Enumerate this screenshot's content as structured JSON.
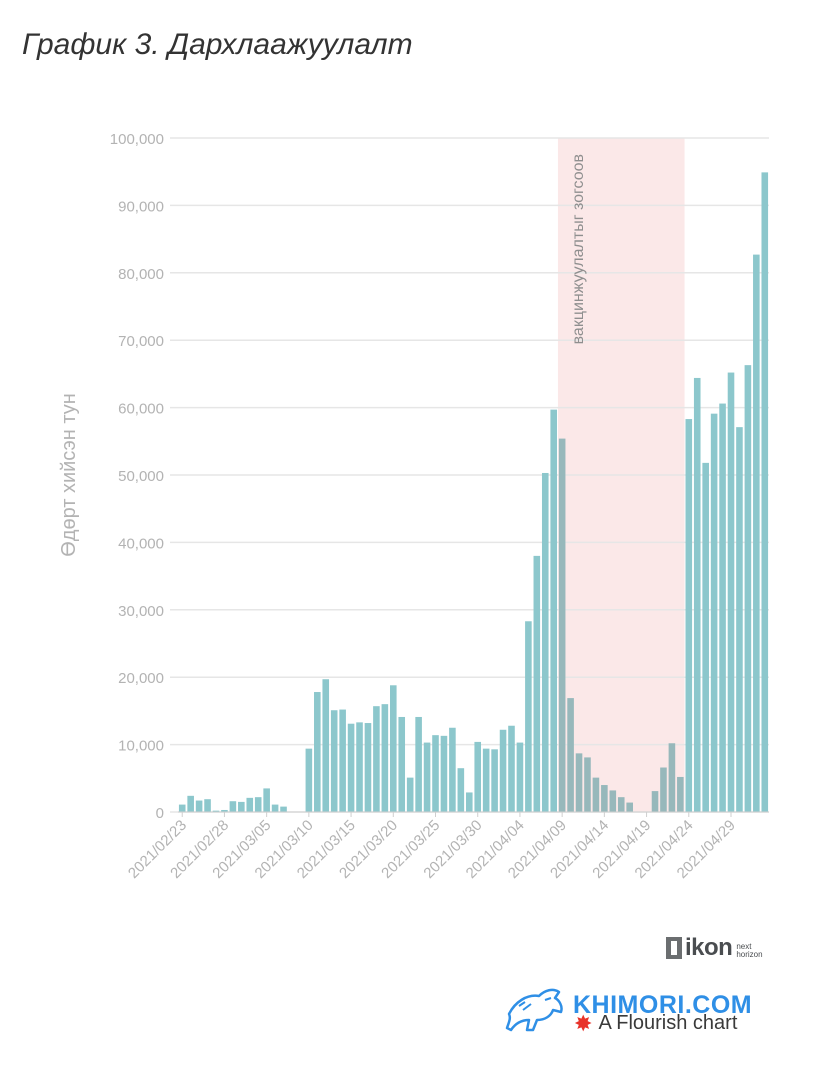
{
  "title": "График 3. Дархлаажуулалт",
  "chart_data": {
    "type": "bar",
    "ylabel": "Өдөрт хийсэн тун",
    "ylim": [
      0,
      100000
    ],
    "yticks": [
      0,
      10000,
      20000,
      30000,
      40000,
      50000,
      60000,
      70000,
      80000,
      90000,
      100000
    ],
    "ytick_labels": [
      "0",
      "10,000",
      "20,000",
      "30,000",
      "40,000",
      "50,000",
      "60,000",
      "70,000",
      "80,000",
      "90,000",
      "100,000"
    ],
    "x_tick_labels": [
      "2021/02/23",
      "2021/02/28",
      "2021/03/05",
      "2021/03/10",
      "2021/03/15",
      "2021/03/20",
      "2021/03/25",
      "2021/03/30",
      "2021/04/04",
      "2021/04/09",
      "2021/04/14",
      "2021/04/19",
      "2021/04/24",
      "2021/04/29"
    ],
    "categories": [
      "2021/02/23",
      "2021/02/24",
      "2021/02/25",
      "2021/02/26",
      "2021/02/27",
      "2021/02/28",
      "2021/03/01",
      "2021/03/02",
      "2021/03/03",
      "2021/03/04",
      "2021/03/05",
      "2021/03/06",
      "2021/03/07",
      "2021/03/08",
      "2021/03/09",
      "2021/03/10",
      "2021/03/11",
      "2021/03/12",
      "2021/03/13",
      "2021/03/14",
      "2021/03/15",
      "2021/03/16",
      "2021/03/17",
      "2021/03/18",
      "2021/03/19",
      "2021/03/20",
      "2021/03/21",
      "2021/03/22",
      "2021/03/23",
      "2021/03/24",
      "2021/03/25",
      "2021/03/26",
      "2021/03/27",
      "2021/03/28",
      "2021/03/29",
      "2021/03/30",
      "2021/03/31",
      "2021/04/01",
      "2021/04/02",
      "2021/04/03",
      "2021/04/04",
      "2021/04/05",
      "2021/04/06",
      "2021/04/07",
      "2021/04/08",
      "2021/04/09",
      "2021/04/10",
      "2021/04/11",
      "2021/04/12",
      "2021/04/13",
      "2021/04/14",
      "2021/04/15",
      "2021/04/16",
      "2021/04/17",
      "2021/04/18",
      "2021/04/19",
      "2021/04/20",
      "2021/04/21",
      "2021/04/22",
      "2021/04/23",
      "2021/04/24",
      "2021/04/25",
      "2021/04/26",
      "2021/04/27",
      "2021/04/28",
      "2021/04/29",
      "2021/04/30",
      "2021/05/01",
      "2021/05/02",
      "2021/05/03"
    ],
    "values": [
      1100,
      2400,
      1700,
      1900,
      200,
      300,
      1600,
      1500,
      2100,
      2200,
      3500,
      1100,
      800,
      0,
      0,
      9400,
      17800,
      19700,
      15100,
      15200,
      13100,
      13300,
      13200,
      15700,
      16000,
      18800,
      14100,
      5100,
      14100,
      10300,
      11400,
      11300,
      12500,
      6500,
      2900,
      10400,
      9400,
      9300,
      12200,
      12800,
      10300,
      28300,
      38000,
      50300,
      59700,
      55400,
      16900,
      8700,
      8100,
      5100,
      4000,
      3200,
      2200,
      1400,
      0,
      0,
      3100,
      6600,
      10200,
      5200,
      58300,
      64400,
      51800,
      59100,
      60600,
      65200,
      57100,
      66300,
      82700,
      94900
    ],
    "shaded_region": {
      "from": "2021/04/09",
      "to": "2021/04/23",
      "label": "вакцинжуулалтыг зогсоов"
    },
    "colors": {
      "bar": "#8cc7cc",
      "bar_in_region": "#97b8bb",
      "region": "#fbe8e8",
      "grid": "#e6e6e6",
      "axis_text": "#b3b3b3"
    },
    "grid": true
  },
  "branding": {
    "ikon": "ikon",
    "ikon_tag_1": "next",
    "ikon_tag_2": "horizon",
    "watermark": "KHIMORI.COM",
    "flourish": "A Flourish chart"
  }
}
